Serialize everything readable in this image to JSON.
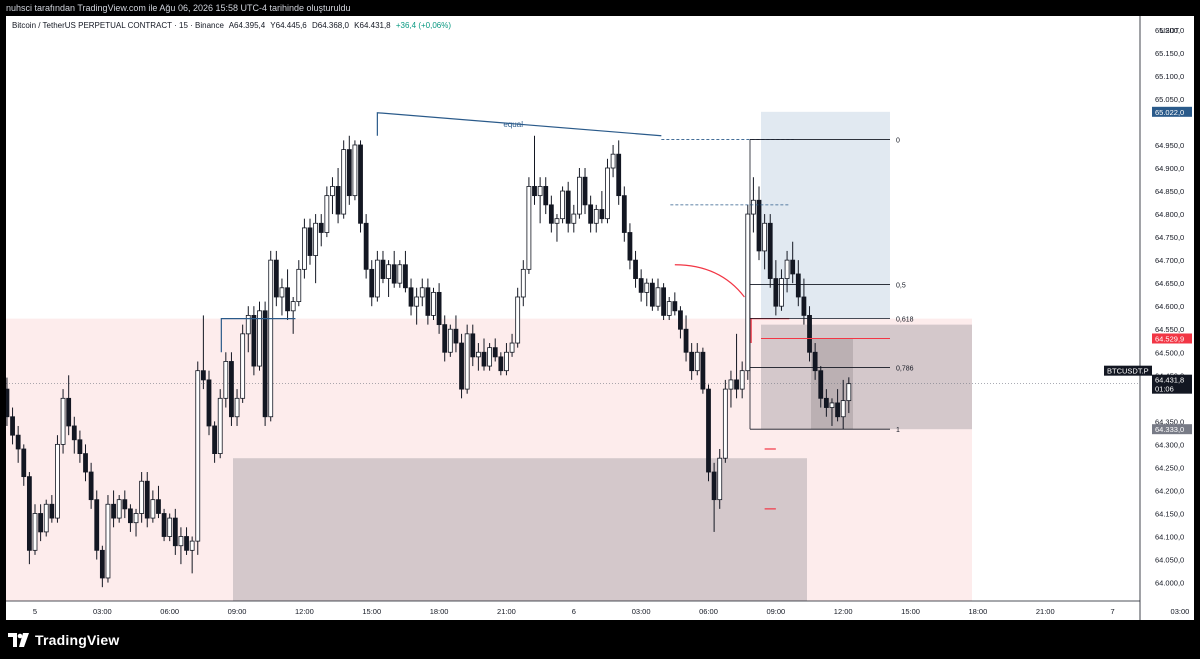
{
  "header": {
    "attribution": "nuhsci tarafından TradingView.com ile Ağu 06, 2026 15:58 UTC-4 tarihinde oluşturuldu"
  },
  "symbol_line": {
    "title": "Bitcoin / TetherUS PERPETUAL CONTRACT · 15 · Binance",
    "open": "A64.395,4",
    "high": "Y64.445,6",
    "low": "D64.368,0",
    "close": "K64.431,8",
    "change": "+36,4 (+0,06%)"
  },
  "footer": {
    "logo_text": "TradingView"
  },
  "colors": {
    "candle_up": "#ffffff",
    "candle_down": "#131722",
    "price_label": "#131722",
    "red": "#f23645",
    "blue": "#2962ff",
    "steelblue": "#2a5a8a",
    "zone_pink": "#fdecec",
    "zone_gray": "#b9b0b5",
    "fib_blue": "#c9d7e6"
  },
  "chart_data": {
    "type": "candlestick",
    "timeframe": "15",
    "exchange": "Binance",
    "currency": "USDT",
    "ylim": [
      63960,
      65230
    ],
    "y_ticks": [
      {
        "value": 65200,
        "label": "65.200,0"
      },
      {
        "value": 65150,
        "label": "65.150,0"
      },
      {
        "value": 65100,
        "label": "65.100,0"
      },
      {
        "value": 65050,
        "label": "65.050,0"
      },
      {
        "value": 64950,
        "label": "64.950,0"
      },
      {
        "value": 64900,
        "label": "64.900,0"
      },
      {
        "value": 64850,
        "label": "64.850,0"
      },
      {
        "value": 64800,
        "label": "64.800,0"
      },
      {
        "value": 64750,
        "label": "64.750,0"
      },
      {
        "value": 64700,
        "label": "64.700,0"
      },
      {
        "value": 64650,
        "label": "64.650,0"
      },
      {
        "value": 64600,
        "label": "64.600,0"
      },
      {
        "value": 64550,
        "label": "64.550,0"
      },
      {
        "value": 64500,
        "label": "64.500,0"
      },
      {
        "value": 64450,
        "label": "64.450,0"
      },
      {
        "value": 64350,
        "label": "64.350,0"
      },
      {
        "value": 64300,
        "label": "64.300,0"
      },
      {
        "value": 64250,
        "label": "64.250,0"
      },
      {
        "value": 64200,
        "label": "64.200,0"
      },
      {
        "value": 64150,
        "label": "64.150,0"
      },
      {
        "value": 64100,
        "label": "64.100,0"
      },
      {
        "value": 64050,
        "label": "64.050,0"
      },
      {
        "value": 64000,
        "label": "64.000,0"
      }
    ],
    "x_ticks": [
      {
        "hour": 0,
        "label": "5"
      },
      {
        "hour": 3,
        "label": "03:00"
      },
      {
        "hour": 6,
        "label": "06:00"
      },
      {
        "hour": 9,
        "label": "09:00"
      },
      {
        "hour": 12,
        "label": "12:00"
      },
      {
        "hour": 15,
        "label": "15:00"
      },
      {
        "hour": 18,
        "label": "18:00"
      },
      {
        "hour": 21,
        "label": "21:00"
      },
      {
        "hour": 24,
        "label": "6"
      },
      {
        "hour": 27,
        "label": "03:00"
      },
      {
        "hour": 30,
        "label": "06:00"
      },
      {
        "hour": 33,
        "label": "09:00"
      },
      {
        "hour": 36,
        "label": "12:00"
      },
      {
        "hour": 39,
        "label": "15:00"
      },
      {
        "hour": 42,
        "label": "18:00"
      },
      {
        "hour": 45,
        "label": "21:00"
      },
      {
        "hour": 48,
        "label": "7"
      },
      {
        "hour": 51,
        "label": "03:00"
      }
    ],
    "price_labels": [
      {
        "label": "65.022,0",
        "value": 65022,
        "color": "#2a5a8a"
      },
      {
        "label": "64.529,9",
        "value": 64529.9,
        "color": "#f23645"
      },
      {
        "label": "BTCUSDT.P",
        "value": 64431.8,
        "color": "#131722",
        "row": 1
      },
      {
        "label": "64.431,8",
        "value": 64431.8,
        "color": "#131722",
        "row": 2
      },
      {
        "label": "01:06",
        "value": 64431.8,
        "color": "#131722",
        "row": 3
      },
      {
        "label": "64.333,0",
        "value": 64333,
        "color": "#787b86"
      }
    ],
    "candles_start_hour": -1.25,
    "candles": [
      {
        "o": 64420,
        "h": 64445,
        "l": 64340,
        "c": 64360
      },
      {
        "o": 64360,
        "h": 64380,
        "l": 64300,
        "c": 64320
      },
      {
        "o": 64320,
        "h": 64340,
        "l": 64260,
        "c": 64290
      },
      {
        "o": 64290,
        "h": 64300,
        "l": 64210,
        "c": 64230
      },
      {
        "o": 64230,
        "h": 64240,
        "l": 64040,
        "c": 64070
      },
      {
        "o": 64070,
        "h": 64170,
        "l": 64060,
        "c": 64150
      },
      {
        "o": 64150,
        "h": 64170,
        "l": 64090,
        "c": 64110
      },
      {
        "o": 64110,
        "h": 64180,
        "l": 64100,
        "c": 64170
      },
      {
        "o": 64170,
        "h": 64190,
        "l": 64130,
        "c": 64140
      },
      {
        "o": 64140,
        "h": 64320,
        "l": 64130,
        "c": 64300
      },
      {
        "o": 64300,
        "h": 64420,
        "l": 64280,
        "c": 64400
      },
      {
        "o": 64400,
        "h": 64450,
        "l": 64320,
        "c": 64340
      },
      {
        "o": 64340,
        "h": 64360,
        "l": 64280,
        "c": 64310
      },
      {
        "o": 64310,
        "h": 64330,
        "l": 64260,
        "c": 64280
      },
      {
        "o": 64280,
        "h": 64300,
        "l": 64220,
        "c": 64240
      },
      {
        "o": 64240,
        "h": 64260,
        "l": 64160,
        "c": 64180
      },
      {
        "o": 64180,
        "h": 64200,
        "l": 64050,
        "c": 64070
      },
      {
        "o": 64070,
        "h": 64080,
        "l": 63990,
        "c": 64010
      },
      {
        "o": 64010,
        "h": 64190,
        "l": 64000,
        "c": 64170
      },
      {
        "o": 64170,
        "h": 64200,
        "l": 64120,
        "c": 64140
      },
      {
        "o": 64140,
        "h": 64190,
        "l": 64130,
        "c": 64180
      },
      {
        "o": 64180,
        "h": 64200,
        "l": 64140,
        "c": 64160
      },
      {
        "o": 64160,
        "h": 64170,
        "l": 64110,
        "c": 64130
      },
      {
        "o": 64130,
        "h": 64160,
        "l": 64100,
        "c": 64150
      },
      {
        "o": 64150,
        "h": 64240,
        "l": 64130,
        "c": 64220
      },
      {
        "o": 64220,
        "h": 64240,
        "l": 64120,
        "c": 64140
      },
      {
        "o": 64140,
        "h": 64200,
        "l": 64130,
        "c": 64180
      },
      {
        "o": 64180,
        "h": 64210,
        "l": 64140,
        "c": 64150
      },
      {
        "o": 64150,
        "h": 64160,
        "l": 64090,
        "c": 64100
      },
      {
        "o": 64100,
        "h": 64150,
        "l": 64090,
        "c": 64140
      },
      {
        "o": 64140,
        "h": 64160,
        "l": 64060,
        "c": 64080
      },
      {
        "o": 64080,
        "h": 64120,
        "l": 64040,
        "c": 64100
      },
      {
        "o": 64100,
        "h": 64120,
        "l": 64060,
        "c": 64070
      },
      {
        "o": 64070,
        "h": 64100,
        "l": 64020,
        "c": 64090
      },
      {
        "o": 64090,
        "h": 64480,
        "l": 64060,
        "c": 64460
      },
      {
        "o": 64460,
        "h": 64580,
        "l": 64420,
        "c": 64440
      },
      {
        "o": 64440,
        "h": 64460,
        "l": 64320,
        "c": 64340
      },
      {
        "o": 64340,
        "h": 64350,
        "l": 64260,
        "c": 64280
      },
      {
        "o": 64280,
        "h": 64420,
        "l": 64270,
        "c": 64400
      },
      {
        "o": 64400,
        "h": 64500,
        "l": 64380,
        "c": 64480
      },
      {
        "o": 64480,
        "h": 64500,
        "l": 64340,
        "c": 64360
      },
      {
        "o": 64360,
        "h": 64420,
        "l": 64340,
        "c": 64400
      },
      {
        "o": 64400,
        "h": 64560,
        "l": 64390,
        "c": 64540
      },
      {
        "o": 64540,
        "h": 64600,
        "l": 64500,
        "c": 64580
      },
      {
        "o": 64580,
        "h": 64600,
        "l": 64450,
        "c": 64470
      },
      {
        "o": 64470,
        "h": 64610,
        "l": 64460,
        "c": 64590
      },
      {
        "o": 64590,
        "h": 64610,
        "l": 64340,
        "c": 64360
      },
      {
        "o": 64360,
        "h": 64720,
        "l": 64350,
        "c": 64700
      },
      {
        "o": 64700,
        "h": 64720,
        "l": 64600,
        "c": 64620
      },
      {
        "o": 64620,
        "h": 64660,
        "l": 64580,
        "c": 64640
      },
      {
        "o": 64640,
        "h": 64680,
        "l": 64570,
        "c": 64590
      },
      {
        "o": 64590,
        "h": 64620,
        "l": 64540,
        "c": 64610
      },
      {
        "o": 64610,
        "h": 64700,
        "l": 64600,
        "c": 64680
      },
      {
        "o": 64680,
        "h": 64790,
        "l": 64660,
        "c": 64770
      },
      {
        "o": 64770,
        "h": 64790,
        "l": 64690,
        "c": 64710
      },
      {
        "o": 64710,
        "h": 64800,
        "l": 64650,
        "c": 64780
      },
      {
        "o": 64780,
        "h": 64800,
        "l": 64730,
        "c": 64760
      },
      {
        "o": 64760,
        "h": 64860,
        "l": 64750,
        "c": 64840
      },
      {
        "o": 64840,
        "h": 64880,
        "l": 64800,
        "c": 64860
      },
      {
        "o": 64860,
        "h": 64900,
        "l": 64780,
        "c": 64800
      },
      {
        "o": 64800,
        "h": 64960,
        "l": 64790,
        "c": 64940
      },
      {
        "o": 64940,
        "h": 64970,
        "l": 64820,
        "c": 64840
      },
      {
        "o": 64840,
        "h": 64960,
        "l": 64830,
        "c": 64950
      },
      {
        "o": 64950,
        "h": 64960,
        "l": 64760,
        "c": 64780
      },
      {
        "o": 64780,
        "h": 64800,
        "l": 64660,
        "c": 64680
      },
      {
        "o": 64680,
        "h": 64700,
        "l": 64600,
        "c": 64620
      },
      {
        "o": 64620,
        "h": 64720,
        "l": 64610,
        "c": 64700
      },
      {
        "o": 64700,
        "h": 64720,
        "l": 64650,
        "c": 64660
      },
      {
        "o": 64660,
        "h": 64700,
        "l": 64620,
        "c": 64690
      },
      {
        "o": 64690,
        "h": 64720,
        "l": 64640,
        "c": 64650
      },
      {
        "o": 64650,
        "h": 64700,
        "l": 64640,
        "c": 64690
      },
      {
        "o": 64690,
        "h": 64720,
        "l": 64630,
        "c": 64640
      },
      {
        "o": 64640,
        "h": 64660,
        "l": 64580,
        "c": 64600
      },
      {
        "o": 64600,
        "h": 64640,
        "l": 64560,
        "c": 64620
      },
      {
        "o": 64620,
        "h": 64660,
        "l": 64600,
        "c": 64640
      },
      {
        "o": 64640,
        "h": 64660,
        "l": 64560,
        "c": 64580
      },
      {
        "o": 64580,
        "h": 64640,
        "l": 64570,
        "c": 64630
      },
      {
        "o": 64630,
        "h": 64650,
        "l": 64540,
        "c": 64560
      },
      {
        "o": 64560,
        "h": 64580,
        "l": 64480,
        "c": 64500
      },
      {
        "o": 64500,
        "h": 64560,
        "l": 64490,
        "c": 64550
      },
      {
        "o": 64550,
        "h": 64580,
        "l": 64500,
        "c": 64520
      },
      {
        "o": 64520,
        "h": 64540,
        "l": 64400,
        "c": 64420
      },
      {
        "o": 64420,
        "h": 64560,
        "l": 64410,
        "c": 64540
      },
      {
        "o": 64540,
        "h": 64560,
        "l": 64470,
        "c": 64490
      },
      {
        "o": 64490,
        "h": 64520,
        "l": 64460,
        "c": 64500
      },
      {
        "o": 64500,
        "h": 64530,
        "l": 64460,
        "c": 64470
      },
      {
        "o": 64470,
        "h": 64520,
        "l": 64460,
        "c": 64510
      },
      {
        "o": 64510,
        "h": 64530,
        "l": 64480,
        "c": 64490
      },
      {
        "o": 64490,
        "h": 64500,
        "l": 64450,
        "c": 64460
      },
      {
        "o": 64460,
        "h": 64520,
        "l": 64450,
        "c": 64500
      },
      {
        "o": 64500,
        "h": 64540,
        "l": 64490,
        "c": 64520
      },
      {
        "o": 64520,
        "h": 64640,
        "l": 64510,
        "c": 64620
      },
      {
        "o": 64620,
        "h": 64700,
        "l": 64600,
        "c": 64680
      },
      {
        "o": 64680,
        "h": 64880,
        "l": 64670,
        "c": 64860
      },
      {
        "o": 64860,
        "h": 64970,
        "l": 64820,
        "c": 64840
      },
      {
        "o": 64840,
        "h": 64880,
        "l": 64780,
        "c": 64860
      },
      {
        "o": 64860,
        "h": 64880,
        "l": 64800,
        "c": 64820
      },
      {
        "o": 64820,
        "h": 64840,
        "l": 64760,
        "c": 64780
      },
      {
        "o": 64780,
        "h": 64800,
        "l": 64740,
        "c": 64790
      },
      {
        "o": 64790,
        "h": 64860,
        "l": 64780,
        "c": 64850
      },
      {
        "o": 64850,
        "h": 64870,
        "l": 64760,
        "c": 64780
      },
      {
        "o": 64780,
        "h": 64820,
        "l": 64760,
        "c": 64800
      },
      {
        "o": 64800,
        "h": 64900,
        "l": 64790,
        "c": 64880
      },
      {
        "o": 64880,
        "h": 64900,
        "l": 64800,
        "c": 64820
      },
      {
        "o": 64820,
        "h": 64840,
        "l": 64760,
        "c": 64780
      },
      {
        "o": 64780,
        "h": 64820,
        "l": 64760,
        "c": 64810
      },
      {
        "o": 64810,
        "h": 64850,
        "l": 64780,
        "c": 64790
      },
      {
        "o": 64790,
        "h": 64920,
        "l": 64780,
        "c": 64900
      },
      {
        "o": 64900,
        "h": 64950,
        "l": 64880,
        "c": 64930
      },
      {
        "o": 64930,
        "h": 64960,
        "l": 64820,
        "c": 64840
      },
      {
        "o": 64840,
        "h": 64860,
        "l": 64740,
        "c": 64760
      },
      {
        "o": 64760,
        "h": 64780,
        "l": 64680,
        "c": 64700
      },
      {
        "o": 64700,
        "h": 64720,
        "l": 64640,
        "c": 64660
      },
      {
        "o": 64660,
        "h": 64680,
        "l": 64610,
        "c": 64630
      },
      {
        "o": 64630,
        "h": 64660,
        "l": 64600,
        "c": 64650
      },
      {
        "o": 64650,
        "h": 64660,
        "l": 64590,
        "c": 64600
      },
      {
        "o": 64600,
        "h": 64660,
        "l": 64590,
        "c": 64640
      },
      {
        "o": 64640,
        "h": 64650,
        "l": 64570,
        "c": 64580
      },
      {
        "o": 64580,
        "h": 64620,
        "l": 64570,
        "c": 64610
      },
      {
        "o": 64610,
        "h": 64630,
        "l": 64580,
        "c": 64590
      },
      {
        "o": 64590,
        "h": 64600,
        "l": 64530,
        "c": 64550
      },
      {
        "o": 64550,
        "h": 64580,
        "l": 64480,
        "c": 64500
      },
      {
        "o": 64500,
        "h": 64520,
        "l": 64440,
        "c": 64460
      },
      {
        "o": 64460,
        "h": 64520,
        "l": 64450,
        "c": 64500
      },
      {
        "o": 64500,
        "h": 64510,
        "l": 64410,
        "c": 64420
      },
      {
        "o": 64420,
        "h": 64430,
        "l": 64220,
        "c": 64240
      },
      {
        "o": 64240,
        "h": 64260,
        "l": 64110,
        "c": 64180
      },
      {
        "o": 64180,
        "h": 64290,
        "l": 64160,
        "c": 64270
      },
      {
        "o": 64270,
        "h": 64440,
        "l": 64260,
        "c": 64420
      },
      {
        "o": 64420,
        "h": 64460,
        "l": 64380,
        "c": 64440
      },
      {
        "o": 64440,
        "h": 64540,
        "l": 64400,
        "c": 64420
      },
      {
        "o": 64420,
        "h": 64480,
        "l": 64400,
        "c": 64460
      },
      {
        "o": 64460,
        "h": 64820,
        "l": 64440,
        "c": 64800
      },
      {
        "o": 64800,
        "h": 64880,
        "l": 64760,
        "c": 64830
      },
      {
        "o": 64830,
        "h": 64860,
        "l": 64700,
        "c": 64720
      },
      {
        "o": 64720,
        "h": 64800,
        "l": 64680,
        "c": 64780
      },
      {
        "o": 64780,
        "h": 64800,
        "l": 64640,
        "c": 64660
      },
      {
        "o": 64660,
        "h": 64700,
        "l": 64580,
        "c": 64600
      },
      {
        "o": 64600,
        "h": 64680,
        "l": 64590,
        "c": 64660
      },
      {
        "o": 64660,
        "h": 64720,
        "l": 64630,
        "c": 64700
      },
      {
        "o": 64700,
        "h": 64740,
        "l": 64650,
        "c": 64670
      },
      {
        "o": 64670,
        "h": 64700,
        "l": 64600,
        "c": 64620
      },
      {
        "o": 64620,
        "h": 64660,
        "l": 64560,
        "c": 64580
      },
      {
        "o": 64580,
        "h": 64600,
        "l": 64480,
        "c": 64500
      },
      {
        "o": 64500,
        "h": 64520,
        "l": 64440,
        "c": 64460
      },
      {
        "o": 64460,
        "h": 64470,
        "l": 64380,
        "c": 64400
      },
      {
        "o": 64400,
        "h": 64420,
        "l": 64360,
        "c": 64380
      },
      {
        "o": 64380,
        "h": 64400,
        "l": 64340,
        "c": 64390
      },
      {
        "o": 64390,
        "h": 64420,
        "l": 64350,
        "c": 64360
      },
      {
        "o": 64360,
        "h": 64440,
        "l": 64333,
        "c": 64395
      },
      {
        "o": 64395,
        "h": 64445.6,
        "l": 64368,
        "c": 64431.8
      }
    ],
    "annotations": {
      "equal_label": "equal",
      "fib_levels": [
        {
          "level": "0",
          "price": 64962
        },
        {
          "level": "0,5",
          "price": 64647
        },
        {
          "level": "0,618",
          "price": 64573
        },
        {
          "level": "0,786",
          "price": 64467
        },
        {
          "level": "1",
          "price": 64333
        }
      ]
    }
  }
}
